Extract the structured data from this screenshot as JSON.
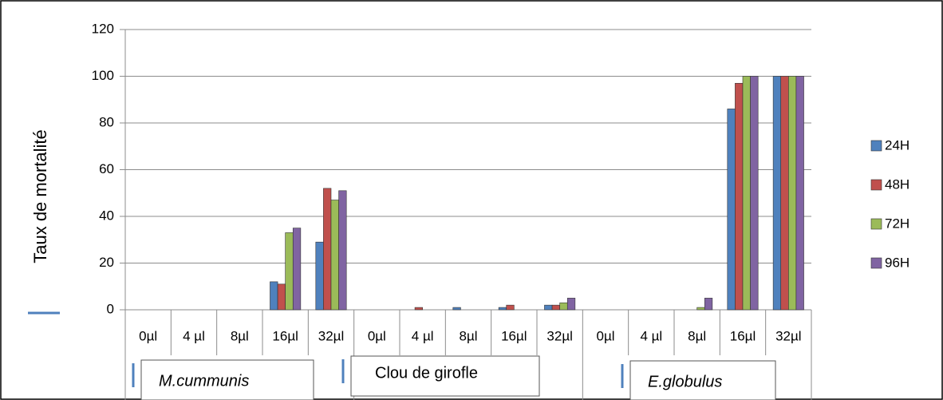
{
  "chart_data": {
    "type": "bar",
    "y_label": "Taux de mortalité",
    "categories": [
      "0µl",
      "4 µl",
      "8µl",
      "16µl",
      "32µl",
      "0µl",
      "4 µl",
      "8µl",
      "16µl",
      "32µl",
      "0µl",
      "4 µl",
      "8µl",
      "16µl",
      "32µl"
    ],
    "groups": [
      "M.cummunis",
      "Clou de girofle",
      "E.globulus"
    ],
    "series": [
      {
        "name": "24H",
        "color": "#4f81bd",
        "values": [
          0,
          0,
          0,
          12,
          29,
          0,
          0,
          1,
          1,
          2,
          0,
          0,
          0,
          86,
          100
        ]
      },
      {
        "name": "48H",
        "color": "#c0504d",
        "values": [
          0,
          0,
          0,
          11,
          52,
          0,
          1,
          0,
          2,
          2,
          0,
          0,
          0,
          97,
          100
        ]
      },
      {
        "name": "72H",
        "color": "#9bbb59",
        "values": [
          0,
          0,
          0,
          33,
          47,
          0,
          0,
          0,
          0,
          3,
          0,
          0,
          1,
          100,
          100
        ]
      },
      {
        "name": "96H",
        "color": "#8064a2",
        "values": [
          0,
          0,
          0,
          35,
          51,
          0,
          0,
          0,
          0,
          5,
          0,
          0,
          5,
          100,
          100
        ]
      }
    ],
    "ylim": [
      0,
      120
    ],
    "yticks": [
      0,
      20,
      40,
      60,
      80,
      100,
      120
    ],
    "grid": true,
    "legend": "right"
  }
}
